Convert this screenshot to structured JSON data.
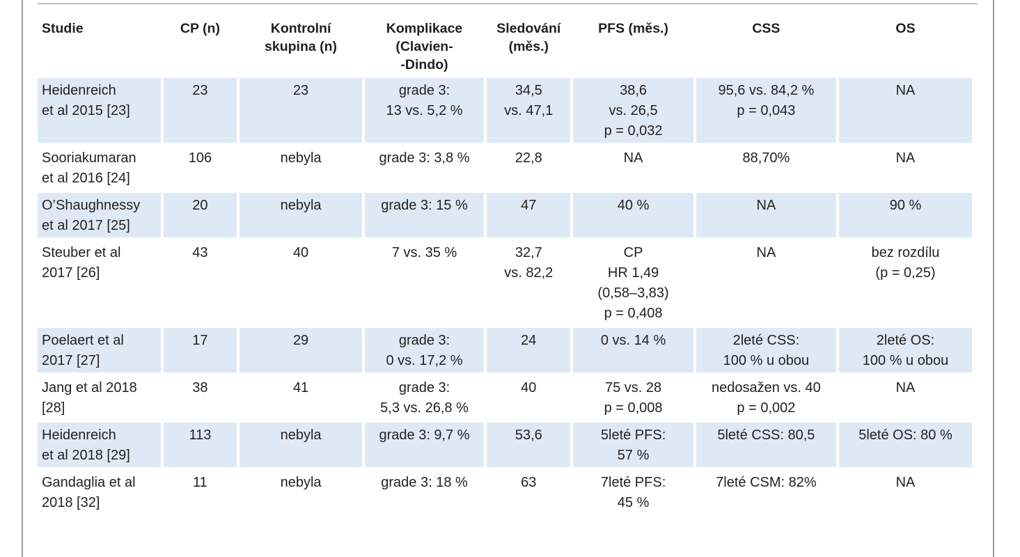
{
  "table": {
    "headers": [
      "Studie",
      "CP (n)",
      "Kontrolní\nskupina (n)",
      "Komplikace\n(Clavien-\n-Dindo)",
      "Sledování\n(měs.)",
      "PFS (měs.)",
      "CSS",
      "OS"
    ],
    "rows": [
      {
        "study": "Heidenreich\net al 2015 [23]",
        "cp": "23",
        "control": "23",
        "complications": "grade 3:\n13 vs. 5,2 %",
        "followup": "34,5\nvs. 47,1",
        "pfs": "38,6\nvs. 26,5\np = 0,032",
        "css": "95,6 vs. 84,2 %\np = 0,043",
        "os": "NA"
      },
      {
        "study": "Sooriakumaran\net al 2016 [24]",
        "cp": "106",
        "control": "nebyla",
        "complications": "grade 3: 3,8 %",
        "followup": "22,8",
        "pfs": "NA",
        "css": "88,70%",
        "os": "NA"
      },
      {
        "study": "O’Shaughnessy\net al 2017 [25]",
        "cp": "20",
        "control": "nebyla",
        "complications": "grade 3: 15 %",
        "followup": "47",
        "pfs": "40 %",
        "css": "NA",
        "os": "90 %"
      },
      {
        "study": "Steuber et al\n2017 [26]",
        "cp": "43",
        "control": "40",
        "complications": "7 vs. 35 %",
        "followup": "32,7\nvs. 82,2",
        "pfs": "CP\nHR 1,49\n(0,58–3,83)\np = 0,408",
        "css": "NA",
        "os": "bez rozdílu\n(p = 0,25)"
      },
      {
        "study": "Poelaert et al\n2017 [27]",
        "cp": "17",
        "control": "29",
        "complications": "grade 3:\n0 vs. 17,2 %",
        "followup": "24",
        "pfs": "0 vs. 14 %",
        "css": "2leté CSS:\n100 % u obou",
        "os": "2leté OS:\n100 % u obou"
      },
      {
        "study": "Jang et al 2018\n[28]",
        "cp": "38",
        "control": "41",
        "complications": "grade 3:\n5,3 vs. 26,8 %",
        "followup": "40",
        "pfs": "75 vs. 28\np = 0,008",
        "css": "nedosažen vs. 40\np = 0,002",
        "os": "NA"
      },
      {
        "study": "Heidenreich\net al 2018 [29]",
        "cp": "113",
        "control": "nebyla",
        "complications": "grade 3: 9,7 %",
        "followup": "53,6",
        "pfs": "5leté PFS:\n57 %",
        "css": "5leté CSS: 80,5",
        "os": "5leté OS: 80 %"
      },
      {
        "study": "Gandaglia et al\n2018 [32]",
        "cp": "11",
        "control": "nebyla",
        "complications": "grade 3: 18 %",
        "followup": "63",
        "pfs": "7leté PFS:\n45 %",
        "css": "7leté CSM: 82%",
        "os": "NA"
      }
    ]
  },
  "colors": {
    "row_shade": "#dfe9f6",
    "text": "#231f20",
    "rule": "#9a9a9a"
  }
}
